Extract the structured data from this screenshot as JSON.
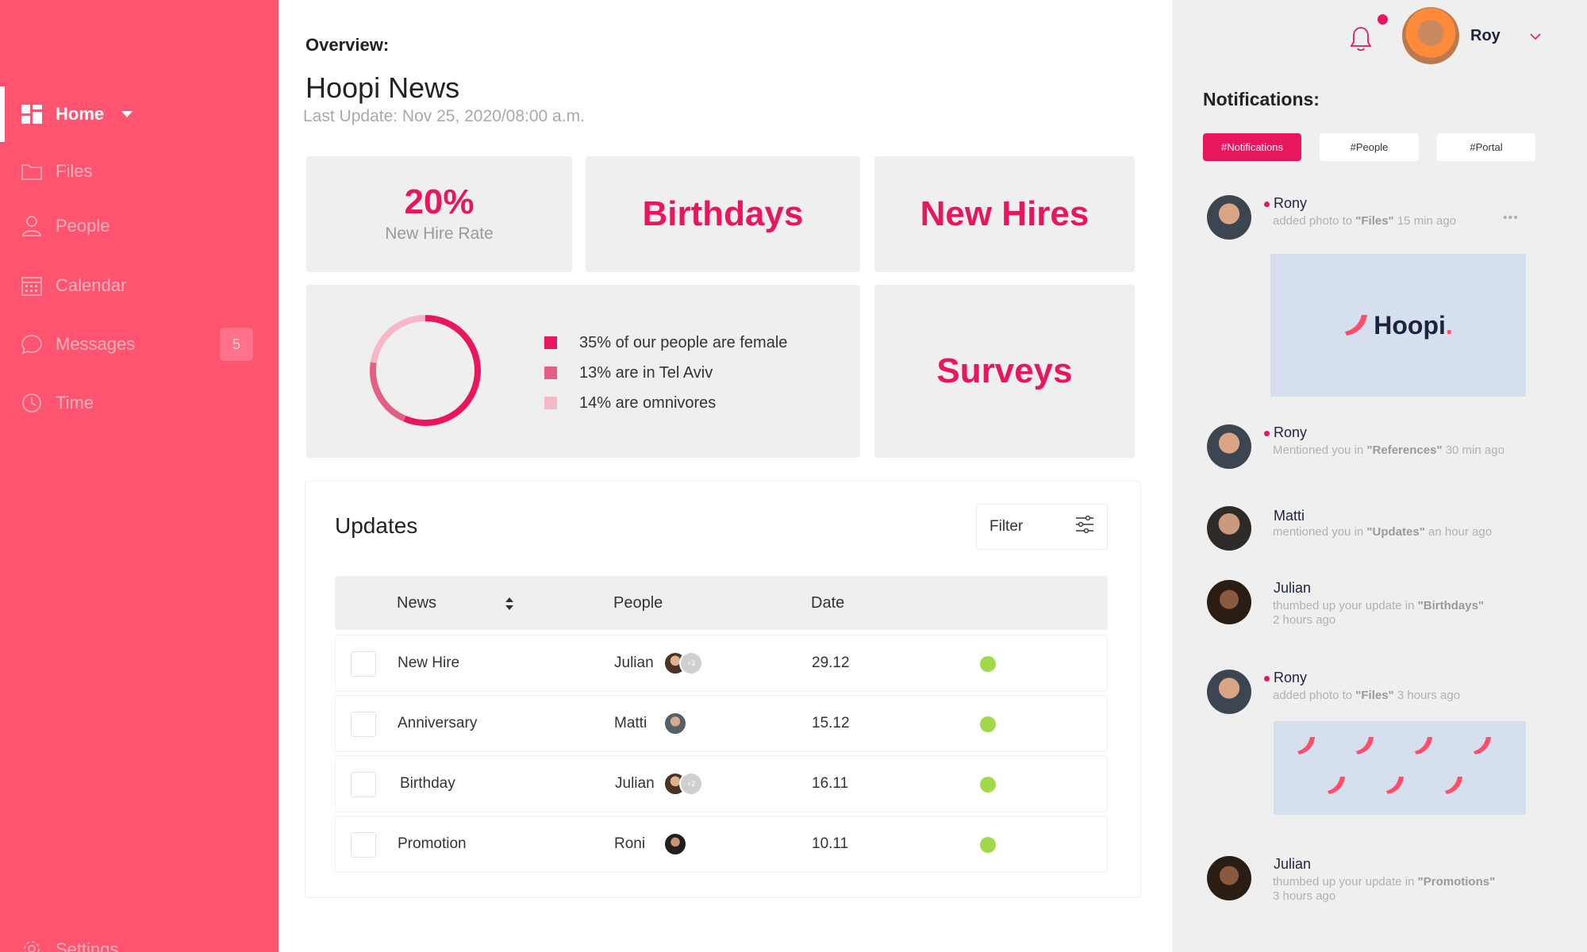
{
  "colors": {
    "sidebar": "#ff5470",
    "accent": "#e8175d",
    "status_green": "#a2d94b",
    "card_bg": "#efefef"
  },
  "sidebar": {
    "items": [
      {
        "label": "Home",
        "icon": "grid-icon"
      },
      {
        "label": "Files",
        "icon": "folder-icon"
      },
      {
        "label": "People",
        "icon": "person-icon"
      },
      {
        "label": "Calendar",
        "icon": "calendar-icon"
      },
      {
        "label": "Messages",
        "icon": "chat-icon",
        "badge": "5"
      },
      {
        "label": "Time",
        "icon": "clock-icon"
      }
    ],
    "settings_label": "Settings"
  },
  "header": {
    "overview": "Overview:",
    "title": "Hoopi News",
    "last_update": "Last Update: Nov 25, 2020/08:00 a.m."
  },
  "cards": {
    "stat_value": "20%",
    "stat_label": "New Hire Rate",
    "birthdays": "Birthdays",
    "new_hires": "New Hires",
    "surveys": "Surveys"
  },
  "donut": {
    "segments": [
      {
        "label": "35% of our people are female",
        "percent": 35,
        "color": "#e8175d"
      },
      {
        "label": "13% are in Tel Aviv",
        "percent": 13,
        "color": "#e35f86"
      },
      {
        "label": "14% are omnivores",
        "percent": 14,
        "color": "#f5b8c8"
      }
    ]
  },
  "updates": {
    "title": "Updates",
    "filter_label": "Filter",
    "columns": {
      "news": "News",
      "people": "People",
      "date": "Date"
    },
    "rows": [
      {
        "news": "New Hire",
        "person": "Julian",
        "extra": "+3",
        "date": "29.12",
        "status": "green"
      },
      {
        "news": "Anniversary",
        "person": "Matti",
        "extra": "",
        "date": "15.12",
        "status": "green"
      },
      {
        "news": "Birthday",
        "person": "Julian",
        "extra": "+2",
        "date": "16.11",
        "status": "green"
      },
      {
        "news": "Promotion",
        "person": "Roni",
        "extra": "",
        "date": "10.11",
        "status": "green"
      }
    ]
  },
  "topbar": {
    "user_name": "Roy"
  },
  "notifications": {
    "title": "Notifications:",
    "tabs": [
      "#Notifications",
      "#People",
      "#Portal"
    ],
    "items": [
      {
        "name": "Rony",
        "unread": true,
        "before": "added photo to ",
        "target": "\"Files\"",
        "after": " 15 min ago",
        "time": ""
      },
      {
        "name": "Rony",
        "unread": true,
        "before": "Mentioned you in ",
        "target": "\"References\"",
        "after": " 30 min ago",
        "time": ""
      },
      {
        "name": "Matti",
        "unread": false,
        "before": "mentioned you in  ",
        "target": "\"Updates\"",
        "after": "   an hour ago",
        "time": ""
      },
      {
        "name": "Julian",
        "unread": false,
        "before": "thumbed up your update  in  ",
        "target": "\"Birthdays\"",
        "after": "",
        "time": "2 hours ago"
      },
      {
        "name": "Rony",
        "unread": true,
        "before": "added photo to ",
        "target": "\"Files\"",
        "after": " 3 hours ago",
        "time": ""
      },
      {
        "name": "Julian",
        "unread": false,
        "before": "thumbed up your update  in  ",
        "target": "\"Promotions\"",
        "after": "",
        "time": "3 hours ago"
      }
    ],
    "logo_text": "Hoopi"
  }
}
